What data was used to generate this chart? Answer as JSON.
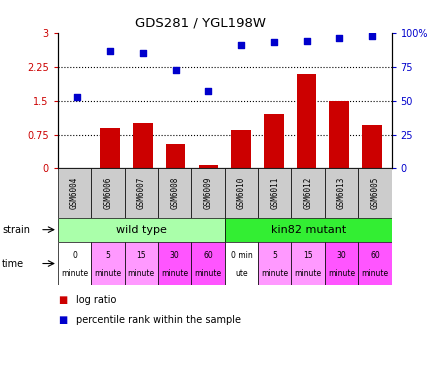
{
  "title": "GDS281 / YGL198W",
  "samples": [
    "GSM6004",
    "GSM6006",
    "GSM6007",
    "GSM6008",
    "GSM6009",
    "GSM6010",
    "GSM6011",
    "GSM6012",
    "GSM6013",
    "GSM6005"
  ],
  "log_ratio": [
    0.0,
    0.9,
    1.0,
    0.55,
    0.08,
    0.85,
    1.2,
    2.1,
    1.5,
    0.95
  ],
  "percentile_right": [
    53.0,
    87.0,
    85.0,
    73.0,
    57.0,
    91.0,
    93.0,
    94.0,
    96.0,
    98.0
  ],
  "bar_color": "#cc0000",
  "dot_color": "#0000cc",
  "ylim_left": [
    0,
    3
  ],
  "ylim_right": [
    0,
    100
  ],
  "yticks_left": [
    0,
    0.75,
    1.5,
    2.25,
    3
  ],
  "yticks_right": [
    0,
    25,
    50,
    75,
    100
  ],
  "ytick_labels_left": [
    "0",
    "0.75",
    "1.5",
    "2.25",
    "3"
  ],
  "ytick_labels_right": [
    "0",
    "25",
    "50",
    "75",
    "100%"
  ],
  "hlines": [
    0.75,
    1.5,
    2.25
  ],
  "strain_labels": [
    "wild type",
    "kin82 mutant"
  ],
  "strain_colors": [
    "#aaffaa",
    "#33ee33"
  ],
  "time_labels": [
    "0\nminute",
    "5\nminute",
    "15\nminute",
    "30\nminute",
    "60\nminute",
    "0 min\nute",
    "5\nminute",
    "15\nminute",
    "30\nminute",
    "60\nminute"
  ],
  "time_colors": [
    "#ffffff",
    "#ff99ff",
    "#ff99ff",
    "#ff55ff",
    "#ff55ff",
    "#ffffff",
    "#ff99ff",
    "#ff99ff",
    "#ff55ff",
    "#ff55ff"
  ],
  "sample_box_color": "#cccccc",
  "legend_bar_label": "log ratio",
  "legend_dot_label": "percentile rank within the sample"
}
